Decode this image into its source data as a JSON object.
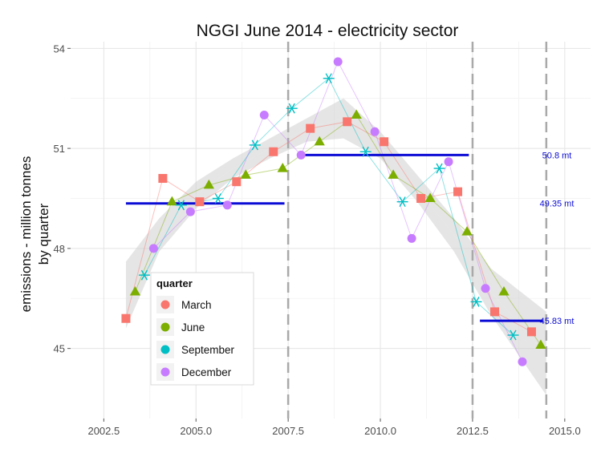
{
  "chart_data": {
    "type": "scatter",
    "title": "NGGI June 2014 - electricity sector",
    "ylabel_lines": [
      "emissions - million tonnes",
      "by quarter"
    ],
    "xlabel": "",
    "xlim": [
      2001.6,
      2015.7
    ],
    "ylim": [
      42.9,
      54.2
    ],
    "x_ticks": [
      2002.5,
      2005.0,
      2007.5,
      2010.0,
      2012.5,
      2015.0
    ],
    "x_tick_labels": [
      "2002.5",
      "2005.0",
      "2007.5",
      "2010.0",
      "2012.5",
      "2015.0"
    ],
    "y_ticks": [
      45,
      48,
      51,
      54
    ],
    "y_tick_labels": [
      "45",
      "48",
      "51",
      "54"
    ],
    "grid": true,
    "legend": {
      "title": "quarter",
      "placement": "bottom-left",
      "entries": [
        "March",
        "June",
        "September",
        "December"
      ]
    },
    "series": [
      {
        "name": "March",
        "marker": "square",
        "color": "#F8766D",
        "x": [
          2003.1,
          2004.1,
          2005.1,
          2006.1,
          2007.1,
          2008.1,
          2009.1,
          2010.1,
          2011.1,
          2012.1,
          2013.1,
          2014.1
        ],
        "y": [
          45.9,
          50.1,
          49.4,
          50.0,
          50.9,
          51.6,
          51.8,
          51.2,
          49.5,
          49.7,
          46.1,
          45.5
        ]
      },
      {
        "name": "June",
        "marker": "triangle",
        "color": "#7CAE00",
        "x": [
          2003.35,
          2004.35,
          2005.35,
          2006.35,
          2007.35,
          2008.35,
          2009.35,
          2010.35,
          2011.35,
          2012.35,
          2013.35,
          2014.35
        ],
        "y": [
          46.7,
          49.4,
          49.9,
          50.2,
          50.4,
          51.2,
          52.0,
          50.2,
          49.5,
          48.5,
          46.7,
          45.1
        ]
      },
      {
        "name": "September",
        "marker": "asterisk",
        "color": "#00BFC4",
        "x": [
          2003.6,
          2004.6,
          2005.6,
          2006.6,
          2007.6,
          2008.6,
          2009.6,
          2010.6,
          2011.6,
          2012.6,
          2013.6
        ],
        "y": [
          47.2,
          49.3,
          49.5,
          51.1,
          52.2,
          53.1,
          50.9,
          49.4,
          50.4,
          46.4,
          45.4
        ]
      },
      {
        "name": "December",
        "marker": "circle",
        "color": "#C77CFF",
        "x": [
          2003.85,
          2004.85,
          2005.85,
          2006.85,
          2007.85,
          2008.85,
          2009.85,
          2010.85,
          2011.85,
          2012.85,
          2013.85
        ],
        "y": [
          48.0,
          49.1,
          49.3,
          52.0,
          50.8,
          53.6,
          51.5,
          48.3,
          50.6,
          46.8,
          44.6
        ]
      }
    ],
    "smooth_fit": {
      "x": [
        2003.1,
        2004.0,
        2005.0,
        2006.0,
        2007.0,
        2008.0,
        2009.0,
        2010.0,
        2011.0,
        2012.0,
        2013.0,
        2014.5
      ],
      "y": [
        46.5,
        48.4,
        49.6,
        50.4,
        51.0,
        51.6,
        51.9,
        51.1,
        49.8,
        48.4,
        46.7,
        44.8
      ],
      "band_lower": [
        45.6,
        47.9,
        49.2,
        50.1,
        50.7,
        51.2,
        51.3,
        50.7,
        49.4,
        47.9,
        46.0,
        43.6
      ],
      "band_upper": [
        47.6,
        48.9,
        50.0,
        50.7,
        51.3,
        51.9,
        52.5,
        51.5,
        50.2,
        48.9,
        47.4,
        46.1
      ],
      "color": "#d0d0d0"
    },
    "period_boundaries": [
      2007.5,
      2012.5,
      2014.5
    ],
    "period_means": [
      {
        "x_start": 2003.1,
        "x_end": 2007.4,
        "value": 49.35,
        "label": "49.35 mt"
      },
      {
        "x_start": 2007.8,
        "x_end": 2012.4,
        "value": 50.8,
        "label": "50.8 mt"
      },
      {
        "x_start": 2012.7,
        "x_end": 2014.4,
        "value": 45.83,
        "label": "45.83 mt"
      }
    ],
    "mean_line_color": "#0b0bd6"
  }
}
